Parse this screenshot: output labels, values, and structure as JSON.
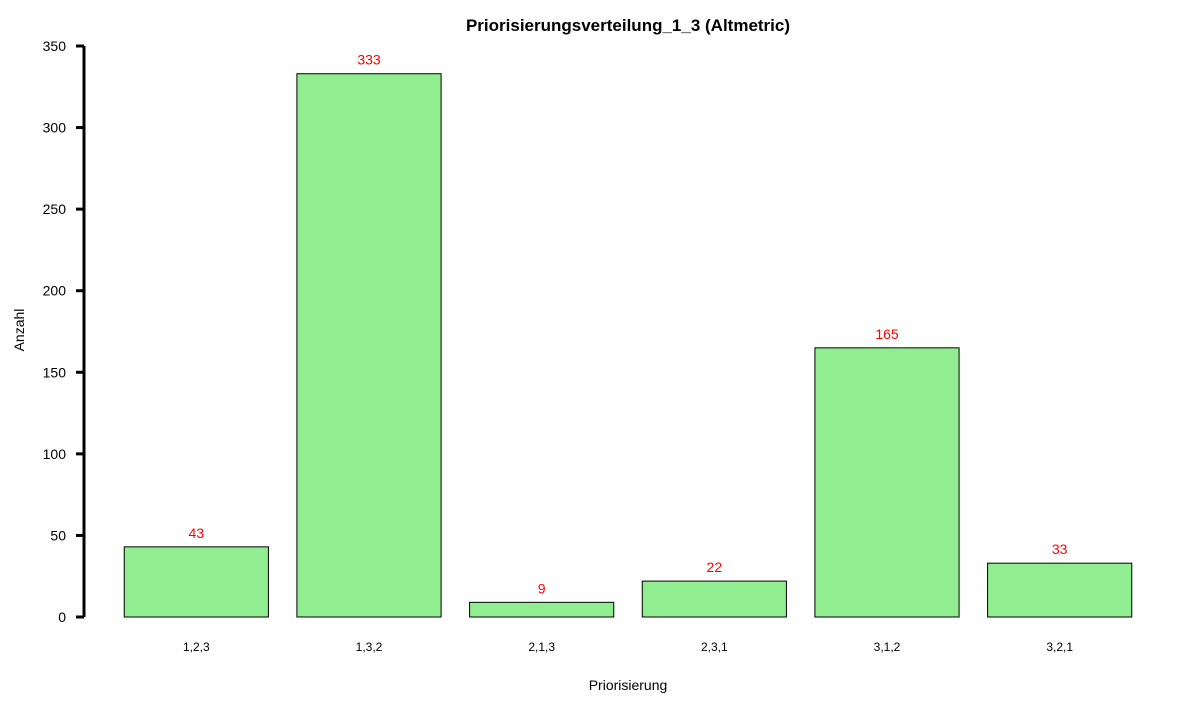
{
  "chart_data": {
    "type": "bar",
    "title": "Priorisierungsverteilung_1_3 (Altmetric)",
    "xlabel": "Priorisierung",
    "ylabel": "Anzahl",
    "categories": [
      "1,2,3",
      "1,3,2",
      "2,1,3",
      "2,3,1",
      "3,1,2",
      "3,2,1"
    ],
    "values": [
      43,
      333,
      9,
      22,
      165,
      33
    ],
    "ylim": [
      0,
      350
    ],
    "yticks": [
      0,
      50,
      100,
      150,
      200,
      250,
      300,
      350
    ],
    "bar_color": "#90EE90",
    "bar_edge_color": "#000000",
    "data_label_color": "#FF0000",
    "grid": false,
    "legend": "none"
  }
}
